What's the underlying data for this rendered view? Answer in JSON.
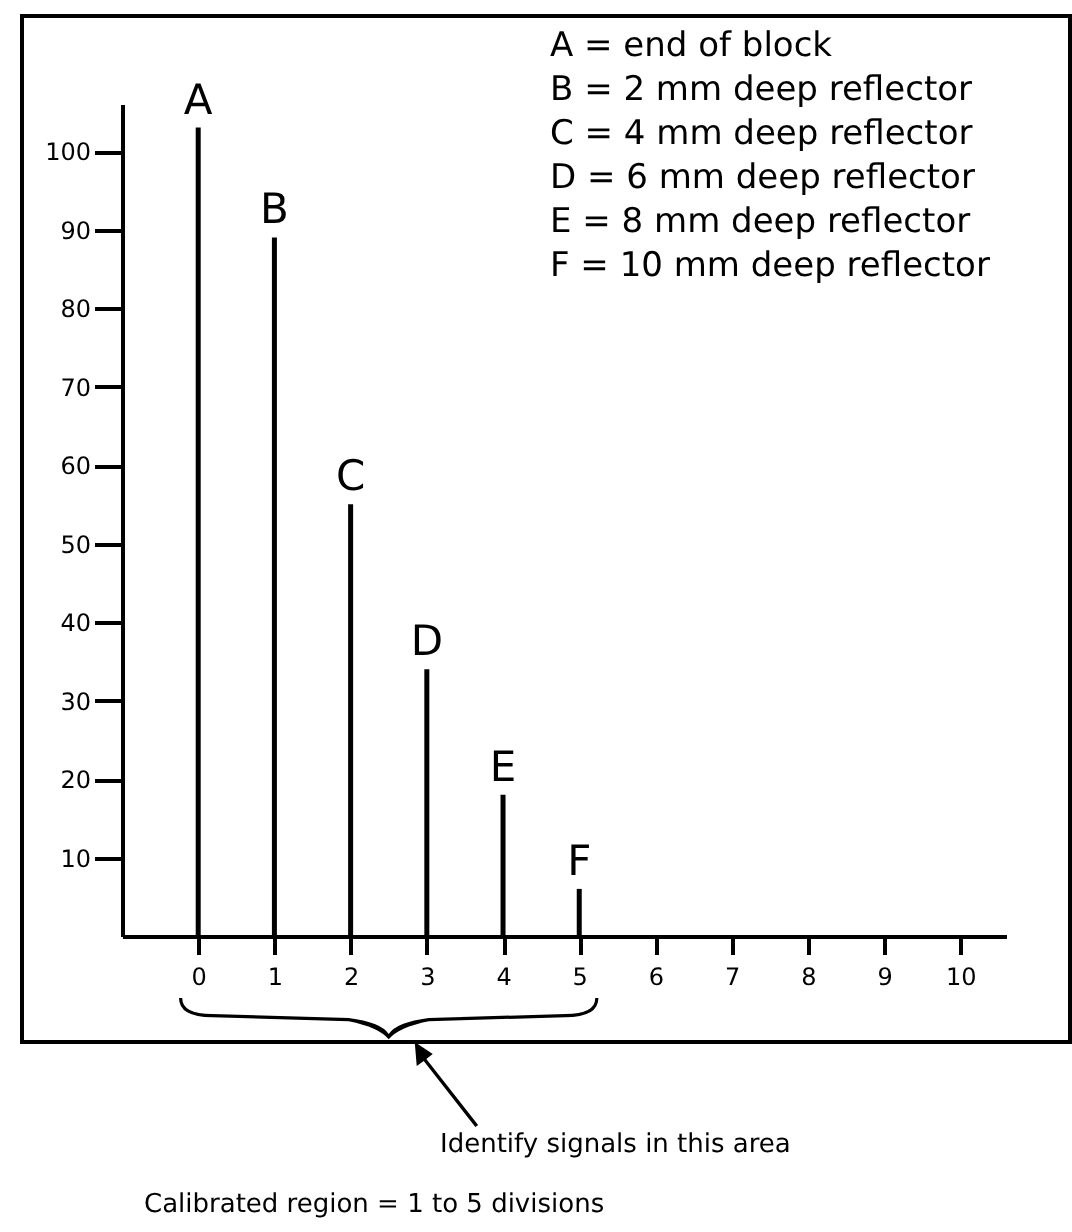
{
  "chart_data": {
    "type": "bar",
    "x": [
      0,
      1,
      2,
      3,
      4,
      5
    ],
    "values": [
      103,
      89,
      55,
      34,
      18,
      6
    ],
    "color": "#000000",
    "xlim": [
      -1,
      10.6
    ],
    "xticks": [
      0,
      1,
      2,
      3,
      4,
      5,
      6,
      7,
      8,
      9,
      10
    ],
    "ylim": [
      0,
      106
    ],
    "yticks": [
      10,
      20,
      30,
      40,
      50,
      60,
      70,
      80,
      90,
      100
    ],
    "grid": false,
    "annotations": [
      {
        "text": "A",
        "x": 0,
        "y": 103
      },
      {
        "text": "B",
        "x": 1,
        "y": 89
      },
      {
        "text": "C",
        "x": 2,
        "y": 55
      },
      {
        "text": "D",
        "x": 3,
        "y": 34
      },
      {
        "text": "E",
        "x": 4,
        "y": 18
      },
      {
        "text": "F",
        "x": 5,
        "y": 6
      },
      "A = end of block",
      "B = 2 mm deep reflector",
      "C = 4 mm deep reflector",
      "D = 6 mm deep reflector",
      "E = 8 mm deep reflector",
      "F = 10 mm deep reflector",
      "Identify signals in this area",
      "Calibrated region = 1 to 5 divisions"
    ]
  }
}
